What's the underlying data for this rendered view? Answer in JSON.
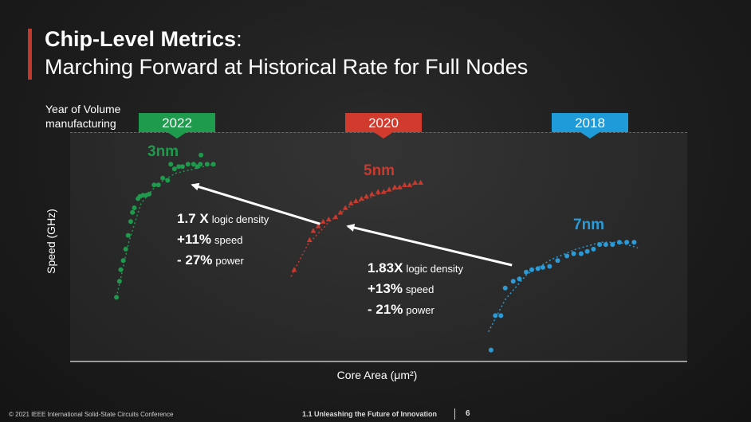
{
  "slide": {
    "title_bold": "Chip-Level Metrics",
    "title_colon": ":",
    "subtitle": "Marching Forward at Historical Rate for Full Nodes",
    "year_caption_line1": "Year of Volume",
    "year_caption_line2": "manufacturing",
    "footer_left": "© 2021 IEEE International Solid-State Circuits Conference",
    "footer_middle": "1.1 Unleashing the Future of Innovation",
    "page_number": "6"
  },
  "chart_data": {
    "type": "scatter",
    "xlabel": "Core Area (μm²)",
    "ylabel": "Speed (GHz)",
    "x_ticks": "none",
    "y_ticks": "none",
    "grid": false,
    "units_note": "axes unscaled; values are relative positions (0-100)",
    "xlim": [
      0,
      100
    ],
    "ylim": [
      0,
      100
    ],
    "tags": [
      {
        "year": "2022",
        "color": "#1e9b4c"
      },
      {
        "year": "2020",
        "color": "#d03b2e"
      },
      {
        "year": "2018",
        "color": "#1e9bd8"
      }
    ],
    "series": [
      {
        "name": "3nm",
        "color": "#1f9a4d",
        "marker": "circle",
        "points": [
          [
            7.5,
            28
          ],
          [
            8.0,
            35
          ],
          [
            8.2,
            40
          ],
          [
            8.6,
            44
          ],
          [
            9.0,
            49
          ],
          [
            9.4,
            55
          ],
          [
            9.8,
            61
          ],
          [
            10.1,
            65
          ],
          [
            10.4,
            67
          ],
          [
            11.0,
            71
          ],
          [
            11.3,
            72
          ],
          [
            11.8,
            72.5
          ],
          [
            12.3,
            72.5
          ],
          [
            12.8,
            73
          ],
          [
            13.6,
            77
          ],
          [
            14.3,
            77
          ],
          [
            15.0,
            80
          ],
          [
            15.8,
            79
          ],
          [
            16.3,
            86
          ],
          [
            16.9,
            84
          ],
          [
            17.6,
            85
          ],
          [
            18.2,
            85
          ],
          [
            19.1,
            86
          ],
          [
            20.0,
            86
          ],
          [
            20.6,
            85
          ],
          [
            21.1,
            86
          ],
          [
            21.2,
            90
          ],
          [
            22.2,
            86
          ],
          [
            23.2,
            86
          ]
        ],
        "trend": [
          [
            7.5,
            28
          ],
          [
            9.5,
            52
          ],
          [
            11.5,
            69
          ],
          [
            14.0,
            77
          ],
          [
            17.0,
            82
          ],
          [
            23.2,
            86
          ]
        ]
      },
      {
        "name": "5nm",
        "color": "#c9392d",
        "marker": "triangle",
        "points": [
          [
            36.3,
            40
          ],
          [
            38.8,
            53
          ],
          [
            39.4,
            57
          ],
          [
            40.2,
            59
          ],
          [
            41.0,
            61
          ],
          [
            41.9,
            62
          ],
          [
            43.0,
            63
          ],
          [
            43.8,
            65
          ],
          [
            44.6,
            67
          ],
          [
            45.5,
            69
          ],
          [
            46.3,
            70
          ],
          [
            47.2,
            71
          ],
          [
            48.0,
            72
          ],
          [
            48.9,
            73
          ],
          [
            49.9,
            74
          ],
          [
            50.8,
            74
          ],
          [
            51.7,
            75
          ],
          [
            52.6,
            76
          ],
          [
            53.4,
            76
          ],
          [
            54.2,
            77
          ],
          [
            55.0,
            77
          ],
          [
            55.9,
            78
          ],
          [
            56.8,
            78
          ]
        ],
        "trend": [
          [
            35.8,
            37
          ],
          [
            38.5,
            51
          ],
          [
            42.0,
            61
          ],
          [
            46.0,
            69
          ],
          [
            51.0,
            74
          ],
          [
            56.8,
            78
          ]
        ]
      },
      {
        "name": "7nm",
        "color": "#2a9bd6",
        "marker": "circle",
        "points": [
          [
            68.2,
            5
          ],
          [
            68.9,
            20
          ],
          [
            69.8,
            20
          ],
          [
            70.5,
            32
          ],
          [
            71.8,
            35
          ],
          [
            72.8,
            36
          ],
          [
            73.9,
            39
          ],
          [
            74.8,
            40
          ],
          [
            75.8,
            40.5
          ],
          [
            76.6,
            41
          ],
          [
            77.7,
            41.5
          ],
          [
            79.0,
            44
          ],
          [
            80.5,
            46
          ],
          [
            81.6,
            47
          ],
          [
            82.8,
            47
          ],
          [
            83.8,
            48
          ],
          [
            84.8,
            49
          ],
          [
            85.8,
            51
          ],
          [
            86.8,
            51
          ],
          [
            87.9,
            51
          ],
          [
            89.0,
            52
          ],
          [
            90.2,
            52
          ],
          [
            91.4,
            52
          ]
        ],
        "trend": [
          [
            67.8,
            13
          ],
          [
            70.5,
            27
          ],
          [
            74.0,
            38
          ],
          [
            78.0,
            44.5
          ],
          [
            82.0,
            49
          ],
          [
            86.0,
            52
          ],
          [
            89.0,
            52
          ],
          [
            92.0,
            49.5
          ]
        ]
      }
    ],
    "arrows": [
      {
        "from_series": "5nm",
        "to_series": "3nm",
        "from": [
          40.5,
          60
        ],
        "to": [
          19.8,
          77
        ]
      },
      {
        "from_series": "7nm",
        "to_series": "5nm",
        "from": [
          71.6,
          42
        ],
        "to": [
          45.0,
          59
        ]
      }
    ],
    "annotations": [
      {
        "id": "ann1",
        "lines": [
          {
            "big": "1.7 X",
            "small": "logic density"
          },
          {
            "big": "+11%",
            "small": "speed"
          },
          {
            "big": "- 27%",
            "small": "power"
          }
        ]
      },
      {
        "id": "ann2",
        "lines": [
          {
            "big": "1.83X",
            "small": "logic density"
          },
          {
            "big": "+13%",
            "small": "speed"
          },
          {
            "big": "- 21%",
            "small": "power"
          }
        ]
      }
    ]
  }
}
